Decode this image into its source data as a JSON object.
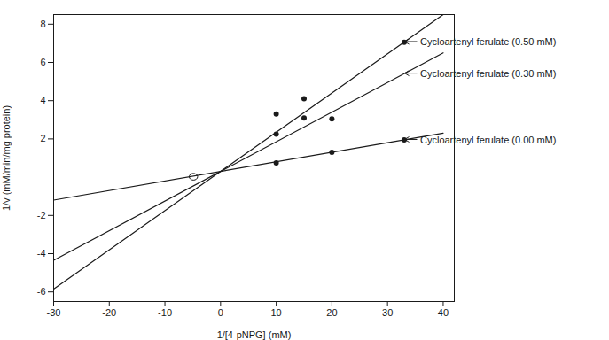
{
  "chart_data": {
    "type": "line",
    "xlabel": "1/[4-pNPG] (mM)",
    "ylabel": "1/v (mM/min/mg protein)",
    "xlim": [
      -30,
      42
    ],
    "ylim": [
      -6.5,
      8.5
    ],
    "xticks": [
      -30,
      -20,
      -10,
      0,
      10,
      20,
      30,
      40
    ],
    "yticks": [
      -6,
      -4,
      -2,
      2,
      4,
      6,
      8
    ],
    "color": "#1a1a1a",
    "series": [
      {
        "type": "line",
        "x": [
          -30,
          40
        ],
        "values": [
          -1.2,
          2.3
        ]
      },
      {
        "type": "scatter",
        "marker": "circle",
        "x": [
          10,
          20,
          33
        ],
        "values": [
          0.75,
          1.3,
          1.95
        ]
      },
      {
        "type": "line",
        "x": [
          -30,
          40
        ],
        "values": [
          -4.35,
          6.5
        ]
      },
      {
        "type": "scatter",
        "marker": "circle",
        "x": [
          10,
          15,
          20
        ],
        "values": [
          2.25,
          3.1,
          3.05
        ]
      },
      {
        "type": "line",
        "x": [
          -30,
          40
        ],
        "values": [
          -5.85,
          8.5
        ]
      },
      {
        "type": "scatter",
        "marker": "circle",
        "x": [
          10,
          15,
          33
        ],
        "values": [
          3.3,
          4.1,
          7.05
        ]
      }
    ],
    "annotations": [
      {
        "text": "Cycloartenyl ferulate (0.00 mM)",
        "x": 33,
        "y": 1.95
      },
      {
        "text": "Cycloartenyl ferulate (0.30 mM)",
        "x": 33,
        "y": 5.415
      },
      {
        "text": "Cycloartenyl ferulate (0.50 mM)",
        "x": 33,
        "y": 7.065
      }
    ],
    "ellipse": {
      "x": -4.8,
      "y": 0.0,
      "width": 1.5,
      "height": 0.35
    }
  }
}
